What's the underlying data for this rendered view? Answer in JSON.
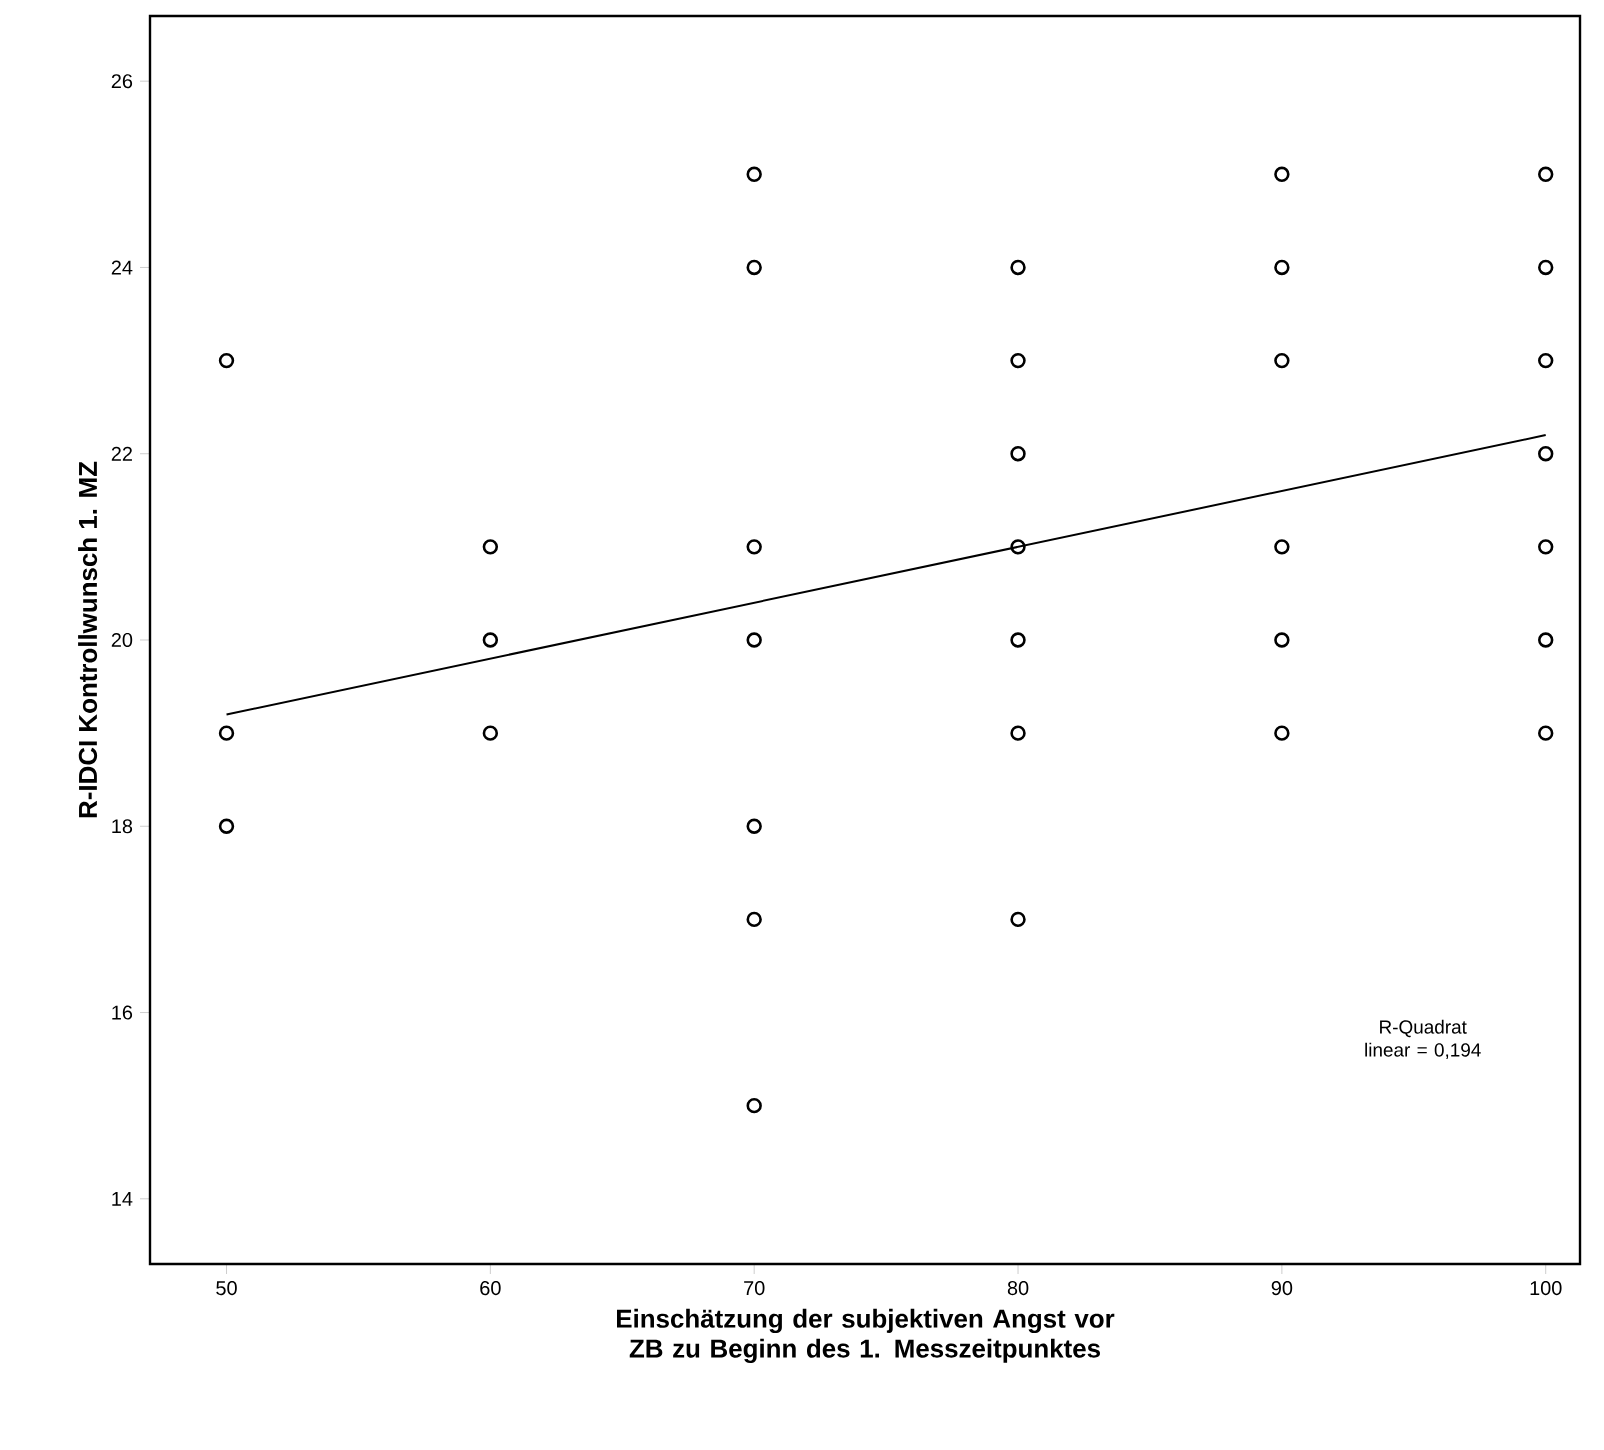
{
  "chart_data": {
    "type": "scatter",
    "xlabel": "Einschätzung der subjektiven Angst vor ZB zu Beginn des 1. Messzeitpunktes",
    "ylabel": "R-IDCI Kontrollwunsch 1. MZ",
    "xlim": [
      47.1,
      101.3
    ],
    "ylim": [
      13.3,
      26.7
    ],
    "xticks": [
      50,
      60,
      70,
      80,
      90,
      100
    ],
    "yticks": [
      14,
      16,
      18,
      20,
      22,
      24,
      26
    ],
    "grid": false,
    "series": [
      {
        "color": "#000000",
        "marker": "circle",
        "x": [
          50,
          50,
          50,
          60,
          60,
          60,
          70,
          70,
          70,
          70,
          70,
          70,
          70,
          80,
          80,
          80,
          80,
          80,
          80,
          80,
          90,
          90,
          90,
          90,
          90,
          90,
          100,
          100,
          100,
          100,
          100,
          100,
          100
        ],
        "values": [
          23,
          19,
          18,
          21,
          20,
          19,
          25,
          24,
          21,
          20,
          18,
          17,
          15,
          24,
          23,
          22,
          21,
          20,
          19,
          17,
          25,
          24,
          23,
          21,
          20,
          19,
          25,
          24,
          23,
          22,
          21,
          20,
          19
        ]
      },
      {
        "type": "line",
        "color": "#000000",
        "line_style": "solid",
        "x": [
          50,
          100
        ],
        "values": [
          19.2,
          22.2
        ]
      }
    ],
    "annotations": [
      "R-Quadrat linear = 0,194"
    ]
  }
}
